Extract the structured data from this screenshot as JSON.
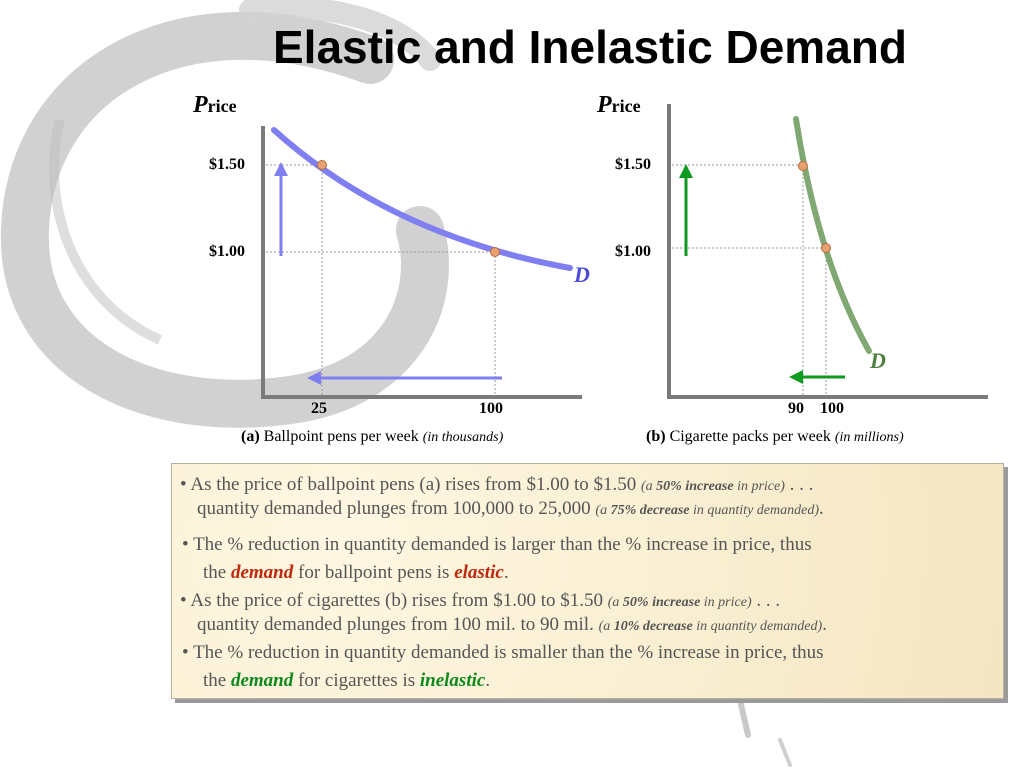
{
  "title": "Elastic and Inelastic Demand",
  "charts": {
    "a": {
      "ylabel_initial": "P",
      "ylabel_rest": "rice",
      "price_ticks": [
        "$1.50",
        "$1.00"
      ],
      "qty_ticks": [
        "25",
        "100"
      ],
      "curve_label": "D",
      "caption_letter": "(a)",
      "caption_text": " Ballpoint pens per week ",
      "caption_unit": "(in thousands)",
      "curve_color": "#7f7ff2",
      "arrow_color": "#7f7ff2"
    },
    "b": {
      "ylabel_initial": "P",
      "ylabel_rest": "rice",
      "price_ticks": [
        "$1.50",
        "$1.00"
      ],
      "qty_ticks": [
        "90",
        "100"
      ],
      "curve_label": "D",
      "caption_letter": "(b)",
      "caption_text": " Cigarette packs per week ",
      "caption_unit": "(in millions)",
      "curve_color": "#7fa872",
      "arrow_color": "#0d9a1e"
    }
  },
  "chart_data": [
    {
      "type": "line",
      "series": [
        {
          "name": "D",
          "points": [
            {
              "x": 25,
              "y": 1.5
            },
            {
              "x": 100,
              "y": 1.0
            }
          ]
        }
      ],
      "ylabel": "Price",
      "xlabel": "Ballpoint pens per week (in thousands)"
    },
    {
      "type": "line",
      "series": [
        {
          "name": "D",
          "points": [
            {
              "x": 90,
              "y": 1.5
            },
            {
              "x": 100,
              "y": 1.0
            }
          ]
        }
      ],
      "ylabel": "Price",
      "xlabel": "Cigarette packs per week (in millions)"
    }
  ],
  "bullets": {
    "b1": {
      "line1_a": "As the price of ballpoint pens (a) rises from $1.00 to $1.50 ",
      "line1_note_pre": "(a ",
      "line1_note_bold": "50% increase",
      "line1_note_post": " in price)",
      "line1_end": " . . .",
      "line2_a": "quantity demanded plunges from 100,000 to 25,000 ",
      "line2_note_pre": "(a ",
      "line2_note_bold": "75% decrease",
      "line2_note_post": " in quantity demanded)",
      "line2_end": "."
    },
    "b2": {
      "line1": "The % reduction in quantity demanded is larger than the % increase in price, thus",
      "line2_pre": "the ",
      "line2_key": "demand",
      "line2_mid": " for ballpoint pens is ",
      "line2_adj": "elastic",
      "line2_end": "."
    },
    "b3": {
      "line1_a": "As the price of cigarettes (b) rises from $1.00 to $1.50 ",
      "line1_note_pre": "(a ",
      "line1_note_bold": "50% increase",
      "line1_note_post": " in price)",
      "line1_end": " . . .",
      "line2_a": "quantity demanded plunges from 100 mil. to 90 mil. ",
      "line2_note_pre": "(a ",
      "line2_note_bold": "10% decrease",
      "line2_note_post": " in quantity demanded)",
      "line2_end": "."
    },
    "b4": {
      "line1": "The % reduction in quantity demanded is smaller than the % increase in price, thus",
      "line2_pre": "the ",
      "line2_key": "demand",
      "line2_mid": " for cigarettes is ",
      "line2_adj": "inelastic",
      "line2_end": "."
    },
    "bullet_char": "•"
  }
}
